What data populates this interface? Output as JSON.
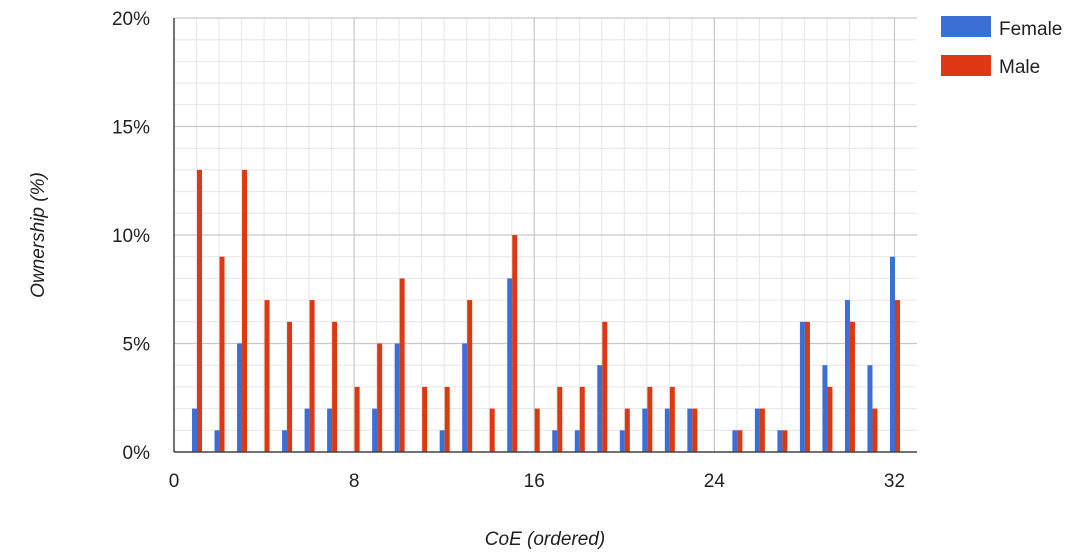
{
  "chart_data": {
    "type": "bar",
    "xlabel": "CoE (ordered)",
    "ylabel": "Ownership (%)",
    "xlim": [
      0,
      33
    ],
    "ylim": [
      0,
      20
    ],
    "x_ticks": [
      {
        "value": 0,
        "label": "0"
      },
      {
        "value": 8,
        "label": "8"
      },
      {
        "value": 16,
        "label": "16"
      },
      {
        "value": 24,
        "label": "24"
      },
      {
        "value": 32,
        "label": "32"
      }
    ],
    "y_ticks": [
      {
        "value": 0,
        "label": "0%"
      },
      {
        "value": 5,
        "label": "5%"
      },
      {
        "value": 10,
        "label": "10%"
      },
      {
        "value": 15,
        "label": "15%"
      },
      {
        "value": 20,
        "label": "20%"
      }
    ],
    "grid": true,
    "legend_position": "right",
    "x": [
      1,
      2,
      3,
      4,
      5,
      6,
      7,
      8,
      9,
      10,
      11,
      12,
      13,
      14,
      15,
      16,
      17,
      18,
      19,
      20,
      21,
      22,
      23,
      24,
      25,
      26,
      27,
      28,
      29,
      30,
      31,
      32
    ],
    "series": [
      {
        "name": "Female",
        "color": "#3c6fd6",
        "values": [
          2,
          1,
          5,
          0,
          1,
          2,
          2,
          0,
          2,
          5,
          0,
          1,
          5,
          0,
          8,
          0,
          1,
          1,
          4,
          1,
          2,
          2,
          2,
          0,
          1,
          2,
          1,
          6,
          4,
          7,
          4,
          9
        ]
      },
      {
        "name": "Male",
        "color": "#dc3912",
        "values": [
          13,
          9,
          13,
          7,
          6,
          7,
          6,
          3,
          5,
          8,
          3,
          3,
          7,
          2,
          10,
          2,
          3,
          3,
          6,
          2,
          3,
          3,
          2,
          0,
          1,
          2,
          1,
          6,
          3,
          6,
          2,
          7
        ]
      }
    ]
  }
}
